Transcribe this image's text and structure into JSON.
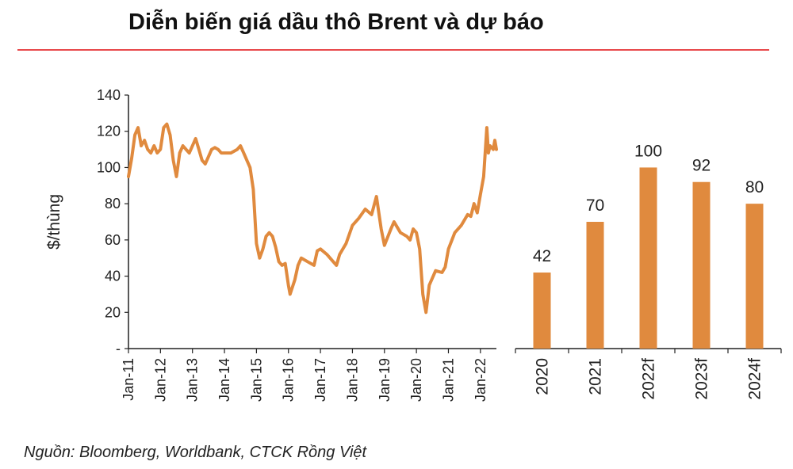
{
  "title": "Diễn biến giá dầu thô Brent và dự báo",
  "source": "Nguồn: Bloomberg, Worldbank, CTCK Rồng Việt",
  "colors": {
    "bar": "#e08a3e",
    "line": "#e08a3e",
    "title_rule": "#e8494b",
    "axis": "#222222"
  },
  "chart_data": [
    {
      "type": "line",
      "ylabel": "$/thùng",
      "xlabel": "",
      "ylim": [
        0,
        140
      ],
      "y_ticks": [
        "-",
        "20",
        "40",
        "60",
        "80",
        "100",
        "120",
        "140"
      ],
      "x_ticks": [
        "Jan-11",
        "Jan-12",
        "Jan-13",
        "Jan-14",
        "Jan-15",
        "Jan-16",
        "Jan-17",
        "Jan-18",
        "Jan-19",
        "Jan-20",
        "Jan-21",
        "Jan-22"
      ],
      "x_range": [
        2011.0,
        2022.5
      ],
      "series": [
        {
          "x": [
            2011.0,
            2011.1,
            2011.2,
            2011.3,
            2011.4,
            2011.5,
            2011.6,
            2011.7,
            2011.8,
            2011.9,
            2012.0,
            2012.1,
            2012.2,
            2012.3,
            2012.4,
            2012.5,
            2012.6,
            2012.7,
            2012.8,
            2012.9,
            2013.0,
            2013.1,
            2013.2,
            2013.3,
            2013.4,
            2013.5,
            2013.6,
            2013.7,
            2013.8,
            2013.9,
            2014.0,
            2014.2,
            2014.4,
            2014.5,
            2014.6,
            2014.7,
            2014.8,
            2014.9,
            2015.0,
            2015.1,
            2015.2,
            2015.3,
            2015.4,
            2015.5,
            2015.6,
            2015.7,
            2015.8,
            2015.9,
            2016.0,
            2016.05,
            2016.2,
            2016.3,
            2016.4,
            2016.6,
            2016.8,
            2016.9,
            2017.0,
            2017.2,
            2017.4,
            2017.5,
            2017.6,
            2017.8,
            2018.0,
            2018.2,
            2018.4,
            2018.6,
            2018.75,
            2018.9,
            2019.0,
            2019.2,
            2019.3,
            2019.5,
            2019.7,
            2019.8,
            2019.9,
            2020.0,
            2020.1,
            2020.2,
            2020.3,
            2020.4,
            2020.6,
            2020.8,
            2020.9,
            2021.0,
            2021.2,
            2021.4,
            2021.6,
            2021.7,
            2021.8,
            2021.9,
            2022.0,
            2022.1,
            2022.2,
            2022.25,
            2022.3,
            2022.4,
            2022.45,
            2022.5
          ],
          "values": [
            95,
            105,
            118,
            122,
            112,
            115,
            110,
            108,
            112,
            108,
            110,
            122,
            124,
            118,
            104,
            95,
            108,
            112,
            110,
            108,
            112,
            116,
            110,
            104,
            102,
            106,
            110,
            111,
            110,
            108,
            108,
            108,
            110,
            112,
            108,
            104,
            100,
            88,
            58,
            50,
            55,
            62,
            64,
            62,
            56,
            48,
            46,
            47,
            35,
            30,
            38,
            46,
            50,
            48,
            46,
            54,
            55,
            52,
            48,
            46,
            52,
            58,
            68,
            72,
            77,
            74,
            84,
            66,
            57,
            66,
            70,
            64,
            62,
            60,
            66,
            64,
            55,
            30,
            20,
            35,
            43,
            42,
            45,
            55,
            64,
            68,
            74,
            73,
            80,
            75,
            85,
            95,
            122,
            108,
            112,
            110,
            115,
            110
          ],
          "point_labels": []
        }
      ]
    },
    {
      "type": "bar",
      "categories": [
        "2020",
        "2021",
        "2022f",
        "2023f",
        "2024f"
      ],
      "values": [
        42,
        70,
        100,
        92,
        80
      ],
      "ylim": [
        0,
        140
      ],
      "data_labels": [
        "42",
        "70",
        "100",
        "92",
        "80"
      ]
    }
  ]
}
